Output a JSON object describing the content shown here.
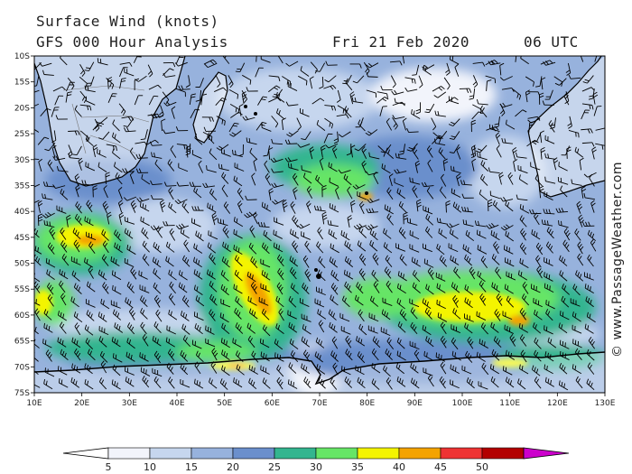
{
  "title": {
    "line1": "Surface Wind (knots)",
    "line2": "GFS 000 Hour Analysis",
    "date": "Fri 21 Feb 2020",
    "time": "06 UTC"
  },
  "copyright": "© www.PassageWeather.com",
  "map": {
    "lat_labels": [
      "10S",
      "15S",
      "20S",
      "25S",
      "30S",
      "35S",
      "40S",
      "45S",
      "50S",
      "55S",
      "60S",
      "65S",
      "70S",
      "75S"
    ],
    "lon_labels": [
      "10E",
      "20E",
      "30E",
      "40E",
      "50E",
      "60E",
      "70E",
      "80E",
      "90E",
      "100E",
      "110E",
      "120E",
      "130E"
    ],
    "colors": {
      "c0_5": "#f2f4fb",
      "c5_10": "#c6d6ee",
      "c10_15": "#97b2dd",
      "c15_20": "#6b8fcc",
      "c20_25": "#33b58f",
      "c25_30": "#66e566",
      "c30_35": "#f4f400",
      "c35_40": "#f4a300",
      "c40_45": "#ee3333",
      "c45_50": "#b30000",
      "c50_plus": "#cc00cc",
      "land": "#ffffff",
      "coast": "#000000"
    }
  },
  "colorbar": {
    "ticks": [
      "5",
      "10",
      "15",
      "20",
      "25",
      "30",
      "35",
      "40",
      "45",
      "50"
    ],
    "colors": [
      "#f2f4fb",
      "#c6d6ee",
      "#97b2dd",
      "#6b8fcc",
      "#33b58f",
      "#66e566",
      "#f4f400",
      "#f4a300",
      "#ee3333",
      "#b30000"
    ],
    "low_color": "#ffffff",
    "high_color": "#cc00cc"
  }
}
